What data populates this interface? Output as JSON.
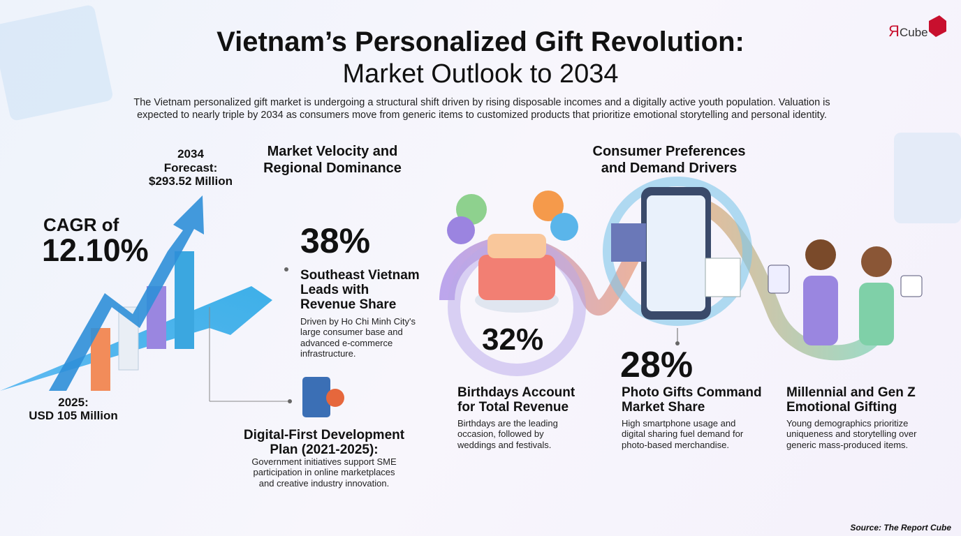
{
  "header": {
    "title_lines": [
      "Vietnam’s Personalized Gift Revolution:",
      "Market Outlook to 2034"
    ],
    "intro_lines": [
      "The Vietnam personalized gift market is undergoing a structural shift driven by rising disposable incomes and a digitally active youth population. Valuation is",
      "expected to nearly triple by 2034 as consumers move from generic items to customized products that prioritize emotional storytelling and personal identity."
    ],
    "logo": {
      "mark": "Я",
      "word": "Cube"
    }
  },
  "growth": {
    "forecast_lines": [
      "2034",
      "Forecast:",
      "$293.52 Million"
    ],
    "cagr_lines": [
      "CAGR of",
      "12.10%"
    ],
    "base_lines": [
      "2025:",
      "USD 105 Million"
    ]
  },
  "regional": {
    "heading_lines": [
      "Market Velocity and",
      "Regional Dominance"
    ],
    "stat": "38%",
    "title_lines": [
      "Southeast Vietnam",
      "Leads with",
      "Revenue Share"
    ],
    "body_lines": [
      "Driven by Ho Chi Minh City's",
      "large consumer base and",
      "advanced e-commerce",
      "infrastructure."
    ]
  },
  "policy": {
    "title_lines": [
      "Digital-First Development",
      "Plan (2021-2025):"
    ],
    "body_lines": [
      "Government initiatives support SME",
      "participation in online marketplaces",
      "and creative industry innovation."
    ]
  },
  "consumer": {
    "heading_lines": [
      "Consumer Preferences",
      "and Demand Drivers"
    ],
    "items": [
      {
        "stat": "32%",
        "title_lines": [
          "Birthdays Account",
          "for Total Revenue"
        ],
        "body_lines": [
          "Birthdays are the leading",
          "occasion, followed by",
          "weddings and festivals."
        ]
      },
      {
        "stat": "28%",
        "title_lines": [
          "Photo Gifts Command",
          "Market Share"
        ],
        "body_lines": [
          "High smartphone usage and",
          "digital sharing fuel demand for",
          "photo-based merchandise."
        ]
      },
      {
        "title_lines": [
          "Millennial and Gen Z",
          "Emotional Gifting"
        ],
        "body_lines": [
          "Young demographics prioritize",
          "uniqueness and storytelling over",
          "generic mass-produced items."
        ]
      }
    ]
  },
  "source": "Source: The Report Cube"
}
